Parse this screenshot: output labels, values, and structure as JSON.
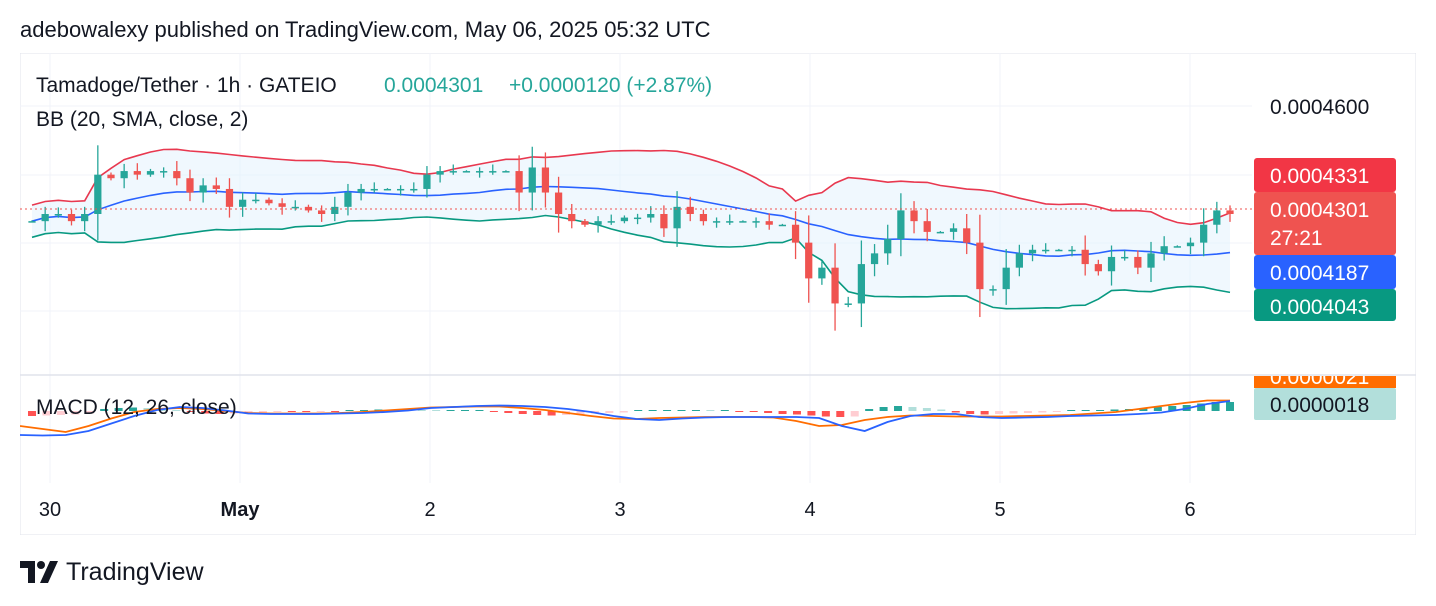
{
  "header": {
    "published": "adebowalexy published on TradingView.com, May 06, 2025 05:32 UTC"
  },
  "legend": {
    "symbol": "Tamadoge/Tether · 1h · GATEIO",
    "price": "0.0004301",
    "change": "+0.0000120 (+2.87%)",
    "bb": "BB (20, SMA, close, 2)",
    "macd": "MACD (12, 26, close)"
  },
  "footer": {
    "brand": "TradingView"
  },
  "colors": {
    "up": "#26a69a",
    "down": "#ef5350",
    "bb_upper": "#e8384f",
    "bb_basis": "#2962ff",
    "bb_lower": "#089981",
    "macd": "#2962ff",
    "signal": "#ff6d00",
    "fill": "#e3f2fd"
  },
  "chart_data": {
    "type": "candlestick",
    "price_axis": {
      "ticks": [
        "0.0004600"
      ],
      "range": [
        0.000385,
        0.000475
      ]
    },
    "price_labels": [
      {
        "name": "upper",
        "value": "0.0004331",
        "color": "#f23645"
      },
      {
        "name": "last",
        "value": "0.0004301",
        "countdown": "27:21",
        "color": "#ef5350"
      },
      {
        "name": "basis",
        "value": "0.0004187",
        "color": "#2962ff"
      },
      {
        "name": "lower",
        "value": "0.0004043",
        "color": "#089981"
      }
    ],
    "macd_labels": [
      {
        "name": "signal",
        "value": "0.0000021",
        "color": "#ff6d00"
      },
      {
        "name": "hist",
        "value": "0.0000018",
        "color": "#b2dfdb"
      }
    ],
    "x_ticks": [
      {
        "label": "30",
        "day": 0,
        "bold": false
      },
      {
        "label": "May",
        "day": 1,
        "bold": true
      },
      {
        "label": "2",
        "day": 2,
        "bold": false
      },
      {
        "label": "3",
        "day": 3,
        "bold": false
      },
      {
        "label": "4",
        "day": 4,
        "bold": false
      },
      {
        "label": "5",
        "day": 5,
        "bold": false
      },
      {
        "label": "6",
        "day": 6,
        "bold": false
      }
    ],
    "candles_closes": [
      0.000428,
      0.00043,
      0.00043,
      0.000428,
      0.00043,
      0.000441,
      0.00044,
      0.000442,
      0.000441,
      0.000442,
      0.000442,
      0.00044,
      0.000436,
      0.000438,
      0.000437,
      0.000432,
      0.000434,
      0.000434,
      0.000433,
      0.000432,
      0.000432,
      0.000431,
      0.00043,
      0.000432,
      0.000436,
      0.000437,
      0.000437,
      0.000437,
      0.000437,
      0.000437,
      0.000441,
      0.000442,
      0.000442,
      0.000442,
      0.000442,
      0.000442,
      0.000442,
      0.000436,
      0.000443,
      0.000436,
      0.00043,
      0.000428,
      0.000427,
      0.000428,
      0.000428,
      0.000429,
      0.000429,
      0.00043,
      0.000426,
      0.000432,
      0.00043,
      0.000428,
      0.000428,
      0.000428,
      0.000428,
      0.000428,
      0.000427,
      0.000427,
      0.000422,
      0.000412,
      0.000415,
      0.000405,
      0.000405,
      0.000416,
      0.000419,
      0.000423,
      0.000431,
      0.000428,
      0.000425,
      0.000425,
      0.000426,
      0.000422,
      0.000409,
      0.000409,
      0.000415,
      0.000419,
      0.00042,
      0.00042,
      0.00042,
      0.00042,
      0.000416,
      0.000414,
      0.000418,
      0.000418,
      0.000415,
      0.000419,
      0.000421,
      0.000421,
      0.000422,
      0.000427,
      0.000431,
      0.00043
    ],
    "macd_hist": [
      -1e-06,
      -9e-07,
      -8e-07,
      -7e-07,
      -5e-07,
      4e-07,
      6e-07,
      7e-07,
      6e-07,
      4e-07,
      2e-07,
      -2e-07,
      -5e-07,
      -6e-07,
      -5e-07,
      -4e-07,
      -3e-07,
      -2e-07,
      -2e-07,
      -2e-07,
      -1e-07,
      -1e-07,
      1e-07,
      2e-07,
      3e-07,
      3e-07,
      3e-07,
      2e-07,
      1e-07,
      1e-07,
      1e-07,
      1e-07,
      -2e-07,
      -4e-07,
      -6e-07,
      -8e-07,
      -9e-07,
      -8e-07,
      -7e-07,
      -5e-07,
      -4e-07,
      -3e-07,
      1e-07,
      1e-07,
      2e-07,
      2e-07,
      2e-07,
      1e-07,
      1e-07,
      -1e-07,
      -2e-07,
      -4e-07,
      -6e-07,
      -7e-07,
      -9e-07,
      -1.1e-06,
      -1.2e-06,
      -1.1e-06,
      4e-07,
      8e-07,
      1e-06,
      8e-07,
      6e-07,
      3e-07,
      -3e-07,
      -6e-07,
      -7e-07,
      -6e-07,
      -5e-07,
      -4e-07,
      -3e-07,
      -2e-07,
      1e-07,
      2e-07,
      2e-07,
      3e-07,
      4e-07,
      6e-07,
      8e-07,
      1e-06,
      1.2e-06,
      1.5e-06,
      1.8e-06,
      1.8e-06
    ],
    "macd_line": [
      -4.8e-06,
      -4.9e-06,
      -4.8e-06,
      -4e-06,
      -2.5e-06,
      -1e-06,
      2e-07,
      8e-07,
      6e-07,
      1e-07,
      -5e-07,
      -6e-07,
      -6e-07,
      -6e-07,
      -5e-07,
      -4e-07,
      -2e-07,
      1e-07,
      6e-07,
      8e-07,
      1e-06,
      1.1e-06,
      1e-06,
      8e-07,
      4e-07,
      -2e-07,
      -1e-06,
      -1.6e-06,
      -1.8e-06,
      -1.5e-06,
      -1.3e-06,
      -1.2e-06,
      -1.2e-06,
      -1.2e-06,
      -1.2e-06,
      -1.4e-06,
      -3e-06,
      -4e-06,
      -2.2e-06,
      -1e-06,
      -6e-07,
      -6e-07,
      -1.2e-06,
      -1.4e-06,
      -1.3e-06,
      -1.2e-06,
      -1e-06,
      -9e-07,
      -8e-07,
      -6e-07,
      -3e-07,
      4e-07,
      1.4e-06,
      2e-06
    ],
    "signal_line": [
      -3e-06,
      -3.6e-06,
      -4.2e-06,
      -3e-06,
      -1.5e-06,
      -2e-07,
      4e-07,
      6e-07,
      4e-07,
      0.0,
      -4e-07,
      -5e-07,
      -5e-07,
      -5e-07,
      -4e-07,
      -2e-07,
      1e-07,
      4e-07,
      7e-07,
      8e-07,
      9e-07,
      9e-07,
      6e-07,
      2e-07,
      -4e-07,
      -1e-06,
      -1.5e-06,
      -1.6e-06,
      -1.4e-06,
      -1.3e-06,
      -1.2e-06,
      -1.2e-06,
      -1.2e-06,
      -1.3e-06,
      -2e-06,
      -3e-06,
      -2.8e-06,
      -1.8e-06,
      -1.2e-06,
      -9e-07,
      -1e-06,
      -1.1e-06,
      -1.1e-06,
      -1.1e-06,
      -1e-06,
      -9e-07,
      -8e-07,
      -5e-07,
      -2e-07,
      4e-07,
      1e-06,
      1.6e-06,
      2.1e-06,
      2.1e-06
    ]
  }
}
